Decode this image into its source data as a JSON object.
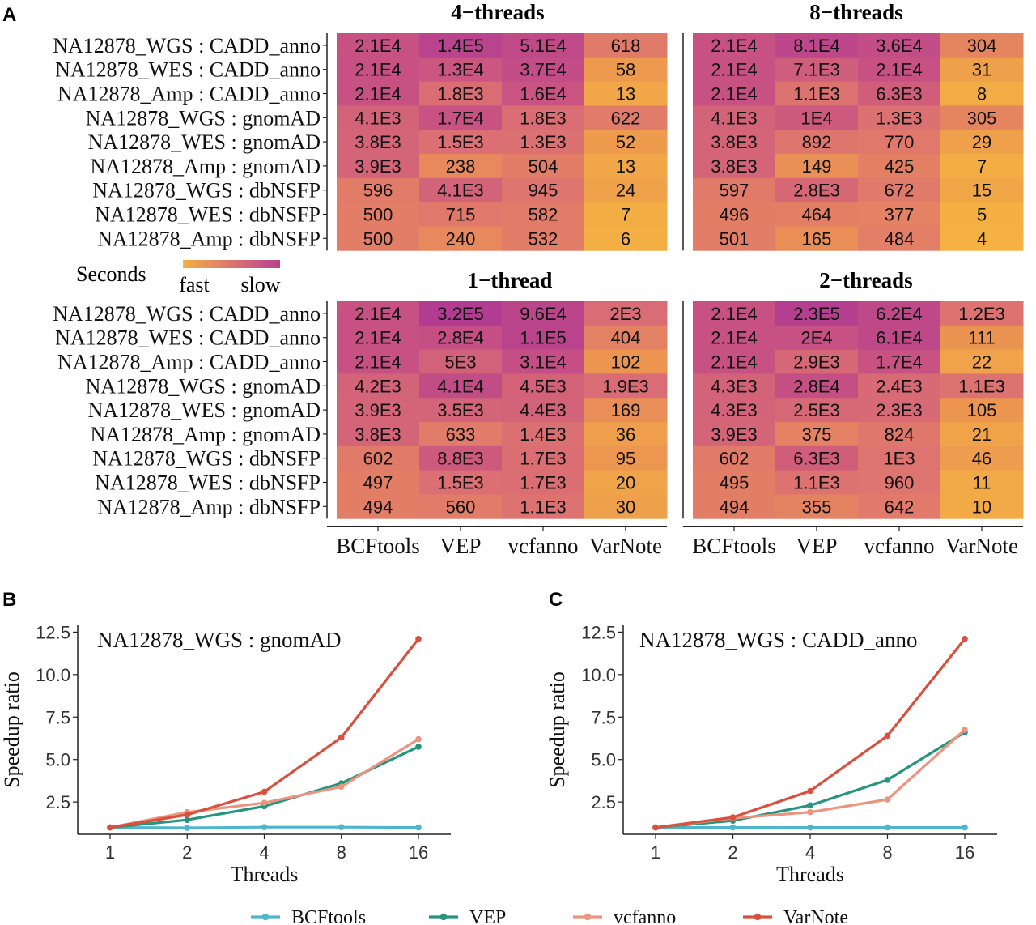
{
  "panel_letters": {
    "a": "A",
    "b": "B",
    "c": "C"
  },
  "heatmap_legend": {
    "title": "Seconds",
    "low_label": "fast",
    "high_label": "slow",
    "low_color": "#f4b042",
    "high_color": "#b8428f"
  },
  "colors": {
    "BCFtools": "#4db6cc",
    "VEP": "#26957e",
    "vcfanno": "#ec9480",
    "VarNote": "#d9503e"
  },
  "line_legend": [
    "BCFtools",
    "VEP",
    "vcfanno",
    "VarNote"
  ],
  "chart_data": [
    {
      "type": "heatmap",
      "title": "4−threads",
      "rows": [
        "NA12878_WGS : CADD_anno",
        "NA12878_WES : CADD_anno",
        "NA12878_Amp : CADD_anno",
        "NA12878_WGS : gnomAD",
        "NA12878_WES : gnomAD",
        "NA12878_Amp : gnomAD",
        "NA12878_WGS : dbNSFP",
        "NA12878_WES : dbNSFP",
        "NA12878_Amp : dbNSFP"
      ],
      "columns": [
        "BCFtools",
        "VEP",
        "vcfanno",
        "VarNote"
      ],
      "labels": [
        [
          "2.1E4",
          "1.4E5",
          "5.1E4",
          "618"
        ],
        [
          "2.1E4",
          "1.3E4",
          "3.7E4",
          "58"
        ],
        [
          "2.1E4",
          "1.8E3",
          "1.6E4",
          "13"
        ],
        [
          "4.1E3",
          "1.7E4",
          "1.8E3",
          "622"
        ],
        [
          "3.8E3",
          "1.5E3",
          "1.3E3",
          "52"
        ],
        [
          "3.9E3",
          "238",
          "504",
          "13"
        ],
        [
          "596",
          "4.1E3",
          "945",
          "24"
        ],
        [
          "500",
          "715",
          "582",
          "7"
        ],
        [
          "500",
          "240",
          "532",
          "6"
        ]
      ],
      "values": [
        [
          21000,
          140000,
          51000,
          618
        ],
        [
          21000,
          13000,
          37000,
          58
        ],
        [
          21000,
          1800,
          16000,
          13
        ],
        [
          4100,
          17000,
          1800,
          622
        ],
        [
          3800,
          1500,
          1300,
          52
        ],
        [
          3900,
          238,
          504,
          13
        ],
        [
          596,
          4100,
          945,
          24
        ],
        [
          500,
          715,
          582,
          7
        ],
        [
          500,
          240,
          532,
          6
        ]
      ]
    },
    {
      "type": "heatmap",
      "title": "8−threads",
      "rows": [
        "NA12878_WGS : CADD_anno",
        "NA12878_WES : CADD_anno",
        "NA12878_Amp : CADD_anno",
        "NA12878_WGS : gnomAD",
        "NA12878_WES : gnomAD",
        "NA12878_Amp : gnomAD",
        "NA12878_WGS : dbNSFP",
        "NA12878_WES : dbNSFP",
        "NA12878_Amp : dbNSFP"
      ],
      "columns": [
        "BCFtools",
        "VEP",
        "vcfanno",
        "VarNote"
      ],
      "labels": [
        [
          "2.1E4",
          "8.1E4",
          "3.6E4",
          "304"
        ],
        [
          "2.1E4",
          "7.1E3",
          "2.1E4",
          "31"
        ],
        [
          "2.1E4",
          "1.1E3",
          "6.3E3",
          "8"
        ],
        [
          "4.1E3",
          "1E4",
          "1.3E3",
          "305"
        ],
        [
          "3.8E3",
          "892",
          "770",
          "29"
        ],
        [
          "3.8E3",
          "149",
          "425",
          "7"
        ],
        [
          "597",
          "2.8E3",
          "672",
          "15"
        ],
        [
          "496",
          "464",
          "377",
          "5"
        ],
        [
          "501",
          "165",
          "484",
          "4"
        ]
      ],
      "values": [
        [
          21000,
          81000,
          36000,
          304
        ],
        [
          21000,
          7100,
          21000,
          31
        ],
        [
          21000,
          1100,
          6300,
          8
        ],
        [
          4100,
          10000,
          1300,
          305
        ],
        [
          3800,
          892,
          770,
          29
        ],
        [
          3800,
          149,
          425,
          7
        ],
        [
          597,
          2800,
          672,
          15
        ],
        [
          496,
          464,
          377,
          5
        ],
        [
          501,
          165,
          484,
          4
        ]
      ]
    },
    {
      "type": "heatmap",
      "title": "1−thread",
      "rows": [
        "NA12878_WGS : CADD_anno",
        "NA12878_WES : CADD_anno",
        "NA12878_Amp : CADD_anno",
        "NA12878_WGS : gnomAD",
        "NA12878_WES : gnomAD",
        "NA12878_Amp : gnomAD",
        "NA12878_WGS : dbNSFP",
        "NA12878_WES : dbNSFP",
        "NA12878_Amp : dbNSFP"
      ],
      "columns": [
        "BCFtools",
        "VEP",
        "vcfanno",
        "VarNote"
      ],
      "labels": [
        [
          "2.1E4",
          "3.2E5",
          "9.6E4",
          "2E3"
        ],
        [
          "2.1E4",
          "2.8E4",
          "1.1E5",
          "404"
        ],
        [
          "2.1E4",
          "5E3",
          "3.1E4",
          "102"
        ],
        [
          "4.2E3",
          "4.1E4",
          "4.5E3",
          "1.9E3"
        ],
        [
          "3.9E3",
          "3.5E3",
          "4.4E3",
          "169"
        ],
        [
          "3.8E3",
          "633",
          "1.4E3",
          "36"
        ],
        [
          "602",
          "8.8E3",
          "1.7E3",
          "95"
        ],
        [
          "497",
          "1.5E3",
          "1.7E3",
          "20"
        ],
        [
          "494",
          "560",
          "1.1E3",
          "30"
        ]
      ],
      "values": [
        [
          21000,
          320000,
          96000,
          2000
        ],
        [
          21000,
          28000,
          110000,
          404
        ],
        [
          21000,
          5000,
          31000,
          102
        ],
        [
          4200,
          41000,
          4500,
          1900
        ],
        [
          3900,
          3500,
          4400,
          169
        ],
        [
          3800,
          633,
          1400,
          36
        ],
        [
          602,
          8800,
          1700,
          95
        ],
        [
          497,
          1500,
          1700,
          20
        ],
        [
          494,
          560,
          1100,
          30
        ]
      ]
    },
    {
      "type": "heatmap",
      "title": "2−threads",
      "rows": [
        "NA12878_WGS : CADD_anno",
        "NA12878_WES : CADD_anno",
        "NA12878_Amp : CADD_anno",
        "NA12878_WGS : gnomAD",
        "NA12878_WES : gnomAD",
        "NA12878_Amp : gnomAD",
        "NA12878_WGS : dbNSFP",
        "NA12878_WES : dbNSFP",
        "NA12878_Amp : dbNSFP"
      ],
      "columns": [
        "BCFtools",
        "VEP",
        "vcfanno",
        "VarNote"
      ],
      "labels": [
        [
          "2.1E4",
          "2.3E5",
          "6.2E4",
          "1.2E3"
        ],
        [
          "2.1E4",
          "2E4",
          "6.1E4",
          "111"
        ],
        [
          "2.1E4",
          "2.9E3",
          "1.7E4",
          "22"
        ],
        [
          "4.3E3",
          "2.8E4",
          "2.4E3",
          "1.1E3"
        ],
        [
          "4.3E3",
          "2.5E3",
          "2.3E3",
          "105"
        ],
        [
          "3.9E3",
          "375",
          "824",
          "21"
        ],
        [
          "602",
          "6.3E3",
          "1E3",
          "46"
        ],
        [
          "495",
          "1.1E3",
          "960",
          "11"
        ],
        [
          "494",
          "355",
          "642",
          "10"
        ]
      ],
      "values": [
        [
          21000,
          230000,
          62000,
          1200
        ],
        [
          21000,
          20000,
          61000,
          111
        ],
        [
          21000,
          2900,
          17000,
          22
        ],
        [
          4300,
          28000,
          2400,
          1100
        ],
        [
          4300,
          2500,
          2300,
          105
        ],
        [
          3900,
          375,
          824,
          21
        ],
        [
          602,
          6300,
          1000,
          46
        ],
        [
          495,
          1100,
          960,
          11
        ],
        [
          494,
          355,
          642,
          10
        ]
      ]
    },
    {
      "type": "line",
      "title": "NA12878_WGS : gnomAD",
      "xlabel": "Threads",
      "ylabel": "Speedup ratio",
      "x": [
        "1",
        "2",
        "4",
        "8",
        "16"
      ],
      "ylim": [
        0.6,
        12.9
      ],
      "yticks": [
        "2.5",
        "5.0",
        "7.5",
        "10.0",
        "12.5"
      ],
      "series": [
        {
          "name": "BCFtools",
          "values": [
            1.0,
            0.98,
            1.02,
            1.02,
            1.0
          ]
        },
        {
          "name": "VEP",
          "values": [
            1.0,
            1.45,
            2.25,
            3.6,
            5.75
          ]
        },
        {
          "name": "vcfanno",
          "values": [
            1.0,
            1.9,
            2.45,
            3.4,
            6.2
          ]
        },
        {
          "name": "VarNote",
          "values": [
            1.0,
            1.75,
            3.1,
            6.3,
            12.1
          ]
        }
      ]
    },
    {
      "type": "line",
      "title": "NA12878_WGS : CADD_anno",
      "xlabel": "Threads",
      "ylabel": "Speedup ratio",
      "x": [
        "1",
        "2",
        "4",
        "8",
        "16"
      ],
      "ylim": [
        0.6,
        12.9
      ],
      "yticks": [
        "2.5",
        "5.0",
        "7.5",
        "10.0",
        "12.5"
      ],
      "series": [
        {
          "name": "BCFtools",
          "values": [
            1.0,
            1.0,
            1.0,
            1.0,
            1.0
          ]
        },
        {
          "name": "VEP",
          "values": [
            1.0,
            1.4,
            2.3,
            3.8,
            6.6
          ]
        },
        {
          "name": "vcfanno",
          "values": [
            1.0,
            1.55,
            1.9,
            2.65,
            6.75
          ]
        },
        {
          "name": "VarNote",
          "values": [
            1.0,
            1.6,
            3.15,
            6.4,
            12.1
          ]
        }
      ]
    }
  ]
}
